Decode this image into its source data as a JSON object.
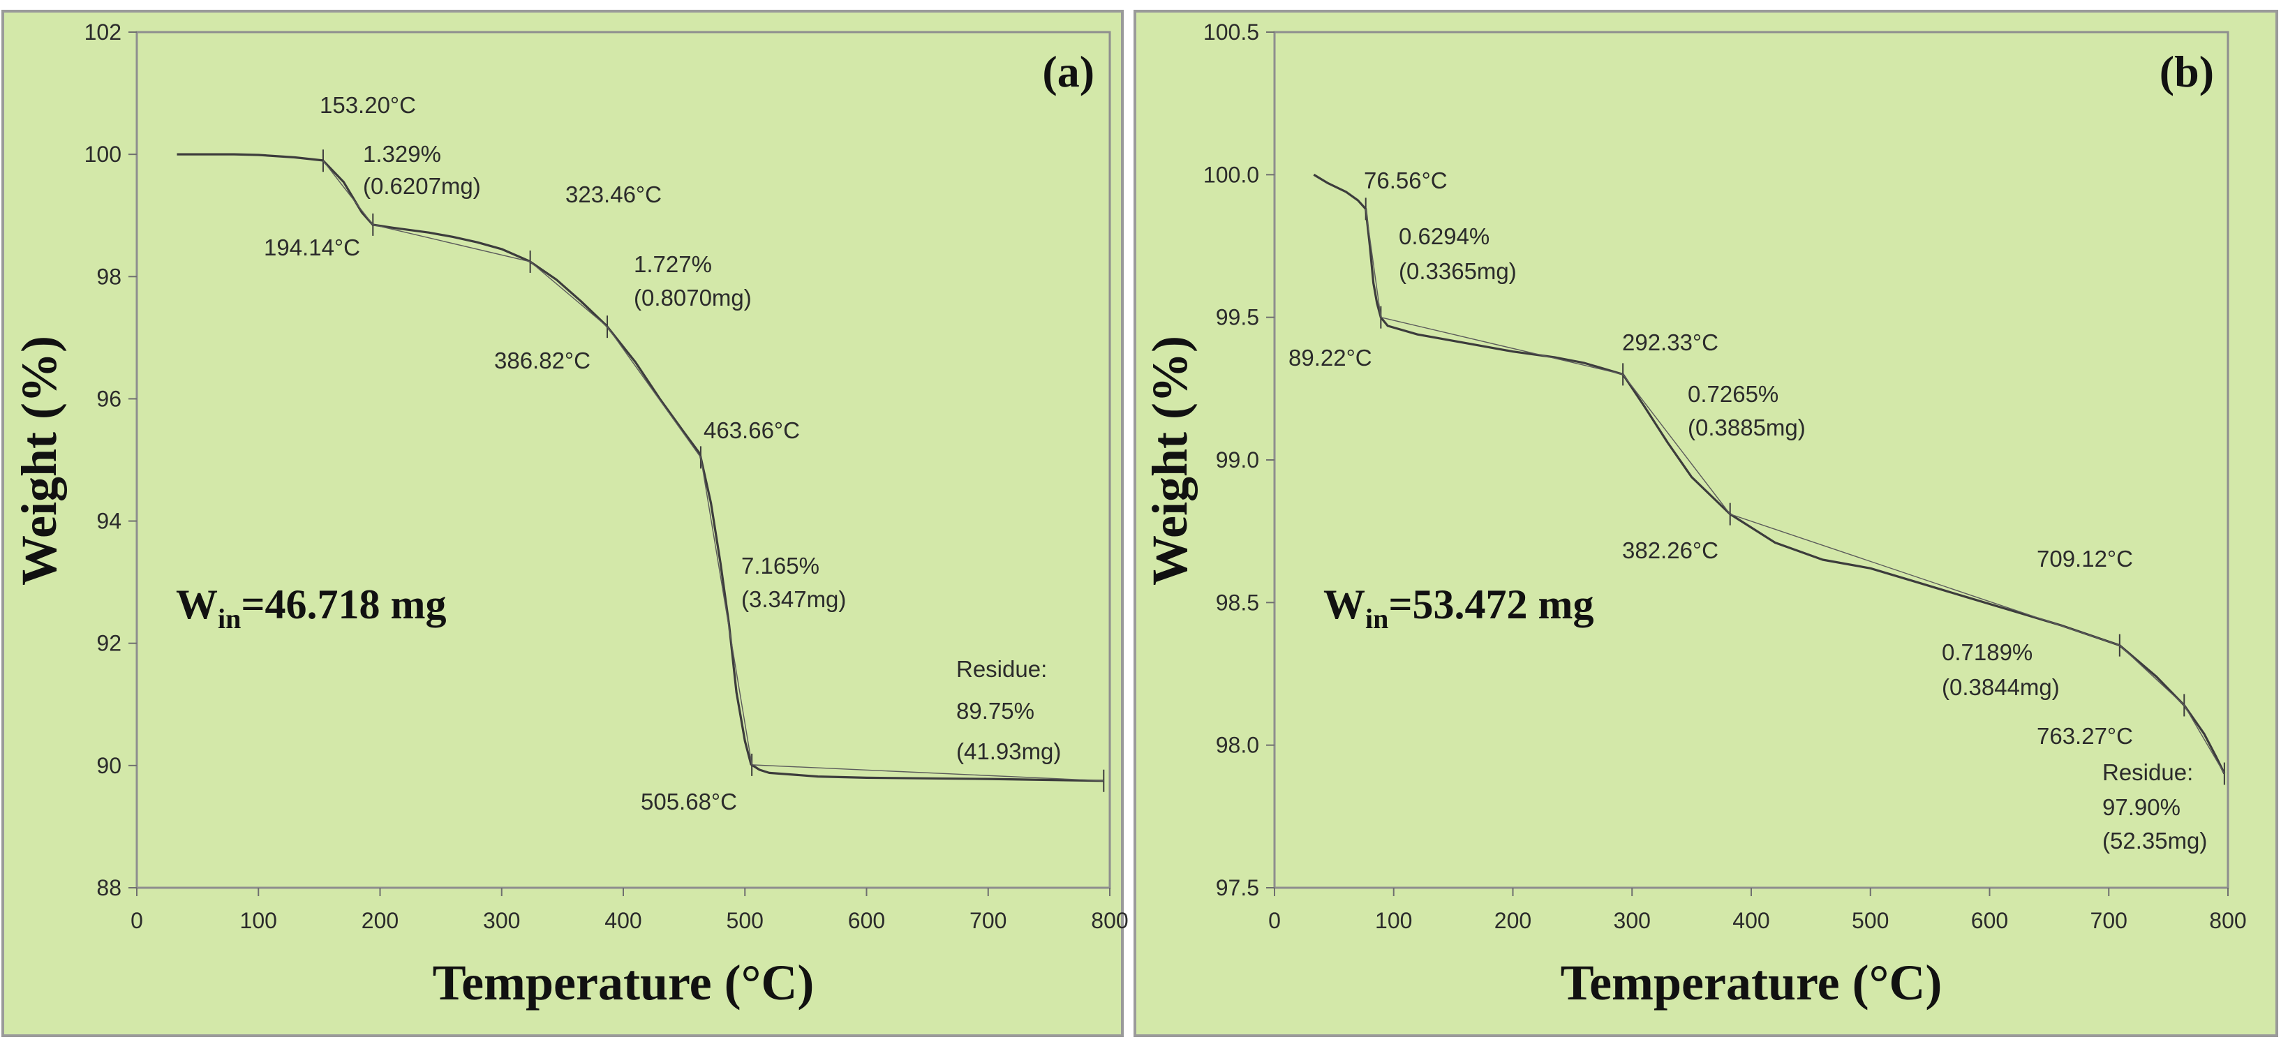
{
  "chart_data": [
    {
      "type": "line",
      "panel_label": "(a)",
      "xlabel": "Temperature (°C)",
      "ylabel": "Weight (%)",
      "xlim": [
        0,
        800
      ],
      "ylim": [
        88,
        102
      ],
      "x_ticks": [
        0,
        100,
        200,
        300,
        400,
        500,
        600,
        700,
        800
      ],
      "y_ticks": [
        88,
        90,
        92,
        94,
        96,
        98,
        100,
        102
      ],
      "y_tick_labels": [
        "88",
        "90",
        "92",
        "94",
        "96",
        "98",
        "100",
        "102"
      ],
      "series": [
        {
          "name": "TGA weight loss (a)",
          "x": [
            33,
            50,
            80,
            100,
            130,
            153,
            170,
            185,
            194,
            210,
            240,
            260,
            280,
            300,
            323,
            345,
            365,
            386,
            410,
            430,
            450,
            463,
            472,
            480,
            487,
            493,
            500,
            505,
            512,
            520,
            560,
            600,
            700,
            795
          ],
          "y": [
            100.0,
            100.0,
            100.0,
            99.99,
            99.95,
            99.9,
            99.55,
            99.05,
            98.85,
            98.8,
            98.72,
            98.65,
            98.56,
            98.45,
            98.25,
            97.95,
            97.6,
            97.2,
            96.6,
            96.0,
            95.45,
            95.1,
            94.3,
            93.3,
            92.3,
            91.2,
            90.4,
            90.02,
            89.93,
            89.88,
            89.82,
            89.8,
            89.78,
            89.75
          ]
        }
      ],
      "annotations": [
        {
          "text": "153.20°C",
          "x": 153.2
        },
        {
          "text": "1.329%",
          "x": 153.2
        },
        {
          "text": "(0.6207mg)",
          "x": 153.2
        },
        {
          "text": "194.14°C",
          "x": 194.14
        },
        {
          "text": "323.46°C",
          "x": 323.46
        },
        {
          "text": "1.727%",
          "x": 323.46
        },
        {
          "text": "(0.8070mg)",
          "x": 323.46
        },
        {
          "text": "386.82°C",
          "x": 386.82
        },
        {
          "text": "463.66°C",
          "x": 463.66
        },
        {
          "text": "7.165%",
          "x": 463.66
        },
        {
          "text": "(3.347mg)",
          "x": 463.66
        },
        {
          "text": "505.68°C",
          "x": 505.68
        },
        {
          "text": "Residue:",
          "x": 795
        },
        {
          "text": "89.75%",
          "x": 795
        },
        {
          "text": "(41.93mg)",
          "x": 795
        }
      ],
      "initial_weight": {
        "symbol": "W",
        "subscript": "in",
        "value": "=46.718 mg"
      }
    },
    {
      "type": "line",
      "panel_label": "(b)",
      "xlabel": "Temperature (°C)",
      "ylabel": "Weight (%)",
      "xlim": [
        0,
        800
      ],
      "ylim": [
        97.5,
        100.5
      ],
      "x_ticks": [
        0,
        100,
        200,
        300,
        400,
        500,
        600,
        700,
        800
      ],
      "y_ticks": [
        97.5,
        98.0,
        98.5,
        99.0,
        99.5,
        100.0,
        100.5
      ],
      "y_tick_labels": [
        "97.5",
        "98.0",
        "98.5",
        "99.0",
        "99.5",
        "100.0",
        "100.5"
      ],
      "series": [
        {
          "name": "TGA weight loss (b)",
          "x": [
            33,
            45,
            60,
            70,
            76.56,
            80,
            83,
            86,
            89.22,
            95,
            120,
            160,
            200,
            235,
            260,
            292.33,
            310,
            330,
            350,
            382.26,
            420,
            460,
            500,
            540,
            580,
            620,
            660,
            709.12,
            740,
            763.27,
            780,
            790,
            797
          ],
          "y": [
            100.0,
            99.97,
            99.94,
            99.91,
            99.88,
            99.75,
            99.62,
            99.55,
            99.5,
            99.47,
            99.44,
            99.41,
            99.38,
            99.36,
            99.34,
            99.3,
            99.19,
            99.06,
            98.94,
            98.81,
            98.71,
            98.65,
            98.62,
            98.57,
            98.52,
            98.47,
            98.42,
            98.35,
            98.24,
            98.14,
            98.04,
            97.96,
            97.9
          ]
        }
      ],
      "annotations": [
        {
          "text": "76.56°C",
          "x": 76.56
        },
        {
          "text": "0.6294%",
          "x": 76.56
        },
        {
          "text": "(0.3365mg)",
          "x": 76.56
        },
        {
          "text": "89.22°C",
          "x": 89.22
        },
        {
          "text": "292.33°C",
          "x": 292.33
        },
        {
          "text": "0.7265%",
          "x": 292.33
        },
        {
          "text": "(0.3885mg)",
          "x": 292.33
        },
        {
          "text": "382.26°C",
          "x": 382.26
        },
        {
          "text": "709.12°C",
          "x": 709.12
        },
        {
          "text": "0.7189%",
          "x": 709.12
        },
        {
          "text": "(0.3844mg)",
          "x": 709.12
        },
        {
          "text": "763.27°C",
          "x": 763.27
        },
        {
          "text": "Residue:",
          "x": 797
        },
        {
          "text": "97.90%",
          "x": 797
        },
        {
          "text": "(52.35mg)",
          "x": 797
        }
      ],
      "initial_weight": {
        "symbol": "W",
        "subscript": "in",
        "value": "=53.472 mg"
      }
    }
  ],
  "colors": {
    "background": "#d3e8a9",
    "plot_border": "#8e8e8e",
    "frame_border": "#9a9a9a",
    "line": "#3c3c3c",
    "text": "#2b2b2b"
  }
}
